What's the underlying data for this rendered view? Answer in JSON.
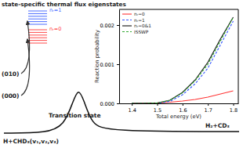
{
  "title": "state-specific thermal flux eigenstates",
  "level_labels": [
    "nᵣ=1",
    "nᵣ=0"
  ],
  "initial_states": [
    "(010)",
    "(000)"
  ],
  "transition_state": "Transition state",
  "reactants": "H+CHD₃(v₁,v₂,v₃)",
  "products": "H₂+CD₃",
  "chart_data": {
    "type": "line",
    "xlabel": "Total energy (eV)",
    "ylabel": "Reaction probability",
    "x": [
      1.4,
      1.45,
      1.5,
      1.55,
      1.6,
      1.65,
      1.7,
      1.75,
      1.8
    ],
    "series": [
      {
        "name": "nᵣ=0",
        "color": "#ff3333",
        "line_style": "solid",
        "values": [
          0,
          0,
          1e-05,
          3e-05,
          6e-05,
          0.0001,
          0.00016,
          0.00024,
          0.00032
        ]
      },
      {
        "name": "nᵣ=1",
        "color": "#3355ff",
        "line_style": "dashed",
        "values": [
          0,
          0,
          0,
          5e-05,
          0.00022,
          0.0005,
          0.0009,
          0.0015,
          0.0021
        ]
      },
      {
        "name": "nᵣ=0&1",
        "color": "#111111",
        "line_style": "solid",
        "values": [
          0,
          0,
          1e-05,
          8e-05,
          0.00028,
          0.0006,
          0.00105,
          0.00165,
          0.0022
        ]
      },
      {
        "name": "ISSWP",
        "color": "#33aa33",
        "line_style": "dashed",
        "values": [
          0,
          0,
          1e-05,
          8e-05,
          0.00027,
          0.00058,
          0.001,
          0.0016,
          0.0022
        ]
      }
    ],
    "xlim": [
      1.35,
      1.82
    ],
    "xticks": [
      1.4,
      1.5,
      1.6,
      1.7,
      1.8
    ],
    "ylim": [
      0,
      0.0024
    ],
    "yticks": [
      {
        "value": 0,
        "label": "0.000"
      },
      {
        "value": 0.001,
        "label": "0.001"
      },
      {
        "value": 0.002,
        "label": "0.002"
      }
    ],
    "legend": "upper left"
  }
}
